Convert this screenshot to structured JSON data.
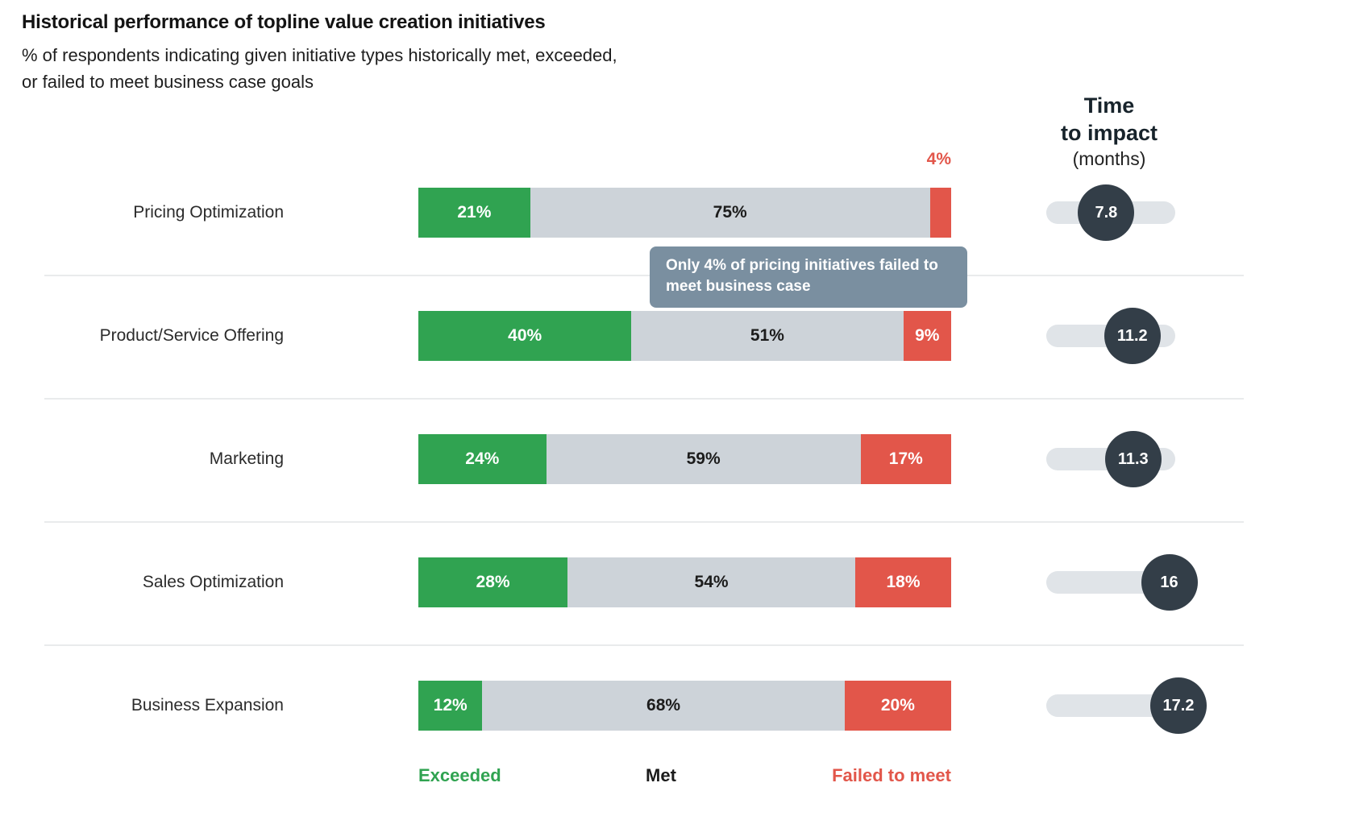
{
  "header": {
    "title": "Historical performance of topline value creation initiatives",
    "subtitle_line1": "% of respondents indicating given initiative types historically met, exceeded,",
    "subtitle_line2": "or failed to meet business case goals"
  },
  "time_header": {
    "line1": "Time",
    "line2": "to impact",
    "unit": "(months)"
  },
  "legend": {
    "exceeded": "Exceeded",
    "met": "Met",
    "failed": "Failed to meet"
  },
  "tooltip": {
    "text": "Only 4% of pricing initiatives failed to meet business case"
  },
  "annotation": {
    "text": "4%"
  },
  "colors": {
    "exceeded": "#30A351",
    "met": "#CDD3D9",
    "failed": "#E2564A",
    "tooltip_bg": "#7A8FA0",
    "time_circle": "#333E48",
    "time_track": "#E0E4E8"
  },
  "rows": [
    {
      "label": "Pricing Optimization",
      "exceeded": 21,
      "met": 75,
      "failed": 4,
      "failed_inline": false,
      "time_value": 7.8,
      "time_label": "7.8"
    },
    {
      "label": "Product/Service Offering",
      "exceeded": 40,
      "met": 51,
      "failed": 9,
      "failed_inline": true,
      "time_value": 11.2,
      "time_label": "11.2"
    },
    {
      "label": "Marketing",
      "exceeded": 24,
      "met": 59,
      "failed": 17,
      "failed_inline": true,
      "time_value": 11.3,
      "time_label": "11.3"
    },
    {
      "label": "Sales Optimization",
      "exceeded": 28,
      "met": 54,
      "failed": 18,
      "failed_inline": true,
      "time_value": 16,
      "time_label": "16"
    },
    {
      "label": "Business Expansion",
      "exceeded": 12,
      "met": 68,
      "failed": 20,
      "failed_inline": true,
      "time_value": 17.2,
      "time_label": "17.2"
    }
  ],
  "chart_data": {
    "type": "bar",
    "variant": "horizontal_stacked_100pct",
    "title": "Historical performance of topline value creation initiatives",
    "subtitle": "% of respondents indicating given initiative types historically met, exceeded, or failed to meet business case goals",
    "categories": [
      "Pricing Optimization",
      "Product/Service Offering",
      "Marketing",
      "Sales Optimization",
      "Business Expansion"
    ],
    "series": [
      {
        "name": "Exceeded",
        "color": "#30A351",
        "values": [
          21,
          40,
          24,
          28,
          12
        ]
      },
      {
        "name": "Met",
        "color": "#CDD3D9",
        "values": [
          75,
          51,
          59,
          54,
          68
        ]
      },
      {
        "name": "Failed to meet",
        "color": "#E2564A",
        "values": [
          4,
          9,
          17,
          18,
          20
        ]
      }
    ],
    "unit": "%",
    "xlim": [
      0,
      100
    ],
    "secondary_metric": {
      "label": "Time to impact (months)",
      "values": [
        7.8,
        11.2,
        11.3,
        16,
        17.2
      ],
      "max": 17.2
    },
    "annotations": [
      {
        "type": "outside_value_label",
        "text": "4%",
        "category": "Pricing Optimization",
        "series": "Failed to meet"
      },
      {
        "type": "callout",
        "text": "Only 4% of pricing initiatives failed to meet business case"
      }
    ],
    "legend_position": "bottom",
    "grid": false
  }
}
